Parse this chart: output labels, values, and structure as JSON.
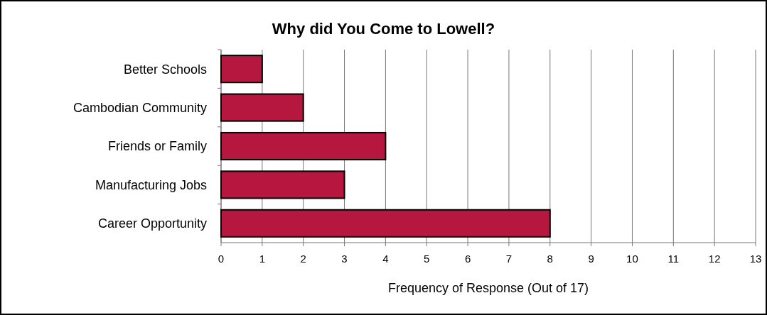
{
  "chart_data": {
    "type": "bar",
    "orientation": "horizontal",
    "title": "Why did You Come to Lowell?",
    "xlabel": "Frequency of Response  (Out of 17)",
    "categories": [
      "Better Schools",
      "Cambodian Community",
      "Friends or Family",
      "Manufacturing Jobs",
      "Career Opportunity"
    ],
    "values": [
      1,
      2,
      4,
      3,
      8
    ],
    "color": "#b5173f",
    "xlim": [
      0,
      13
    ],
    "xticks": [
      0,
      1,
      2,
      3,
      4,
      5,
      6,
      7,
      8,
      9,
      10,
      11,
      12,
      13
    ],
    "grid": "x"
  }
}
